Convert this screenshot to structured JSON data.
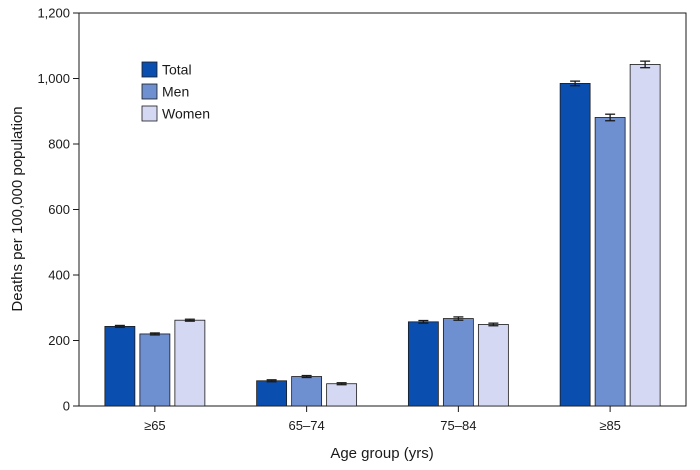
{
  "chart_data": {
    "type": "bar",
    "categories": [
      "≥65",
      "65–74",
      "75–84",
      "≥85"
    ],
    "series": [
      {
        "name": "Total",
        "values": [
          243,
          77,
          257,
          985
        ],
        "error": [
          3,
          3,
          4,
          7
        ],
        "color": "#0a4fb0"
      },
      {
        "name": "Men",
        "values": [
          220,
          90,
          267,
          881
        ],
        "error": [
          3,
          3,
          5,
          10
        ],
        "color": "#6e8fd0"
      },
      {
        "name": "Women",
        "values": [
          262,
          68,
          249,
          1043
        ],
        "error": [
          3,
          3,
          4,
          10
        ],
        "color": "#d4d8f2"
      }
    ],
    "xlabel": "Age group (yrs)",
    "ylabel": "Deaths per 100,000 population",
    "ylim": [
      0,
      1200
    ],
    "yticks": [
      0,
      200,
      400,
      600,
      800,
      1000,
      1200
    ],
    "ytick_labels": [
      "0",
      "200",
      "400",
      "600",
      "800",
      "1,000",
      "1,200"
    ],
    "grid": false,
    "legend_position": "top-left"
  }
}
